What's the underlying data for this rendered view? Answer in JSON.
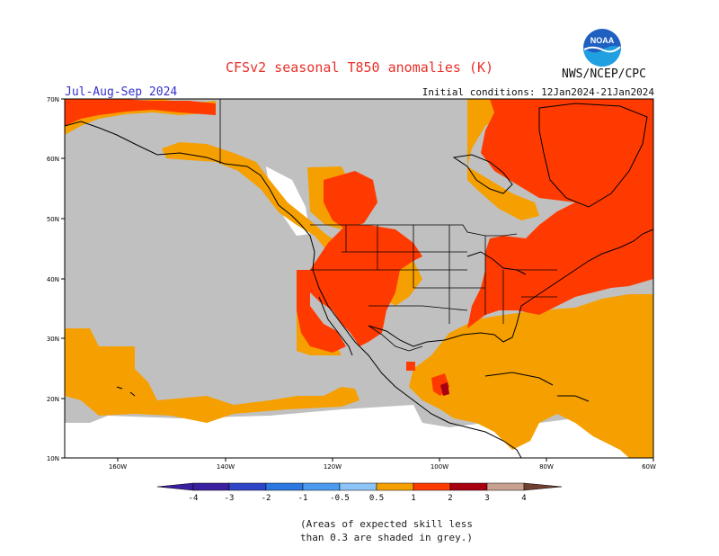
{
  "title": "CFSv2 seasonal T850 anomalies (K)",
  "agency": "NWS/NCEP/CPC",
  "period": "Jul-Aug-Sep 2024",
  "initial_conditions": "Initial conditions: 12Jan2024-21Jan2024",
  "logo_text": "NOAA",
  "lat_labels": [
    "70N",
    "60N",
    "50N",
    "40N",
    "30N",
    "20N",
    "10N"
  ],
  "lon_labels": [
    "160W",
    "140W",
    "120W",
    "100W",
    "80W",
    "60W"
  ],
  "colorbar": {
    "labels": [
      "-4",
      "-3",
      "-2",
      "-1",
      "-0.5",
      "0.5",
      "1",
      "2",
      "3",
      "4"
    ],
    "colors": [
      "#3a1fa0",
      "#2e45c8",
      "#2a78e0",
      "#4a9af0",
      "#8cc4f8",
      "#ffffff",
      "#f5a000",
      "#ff3a00",
      "#a80010",
      "#c8a090",
      "#704030"
    ]
  },
  "map_colors": {
    "grey": "#c0c0c0",
    "orange": "#f5a000",
    "red": "#ff3a00",
    "darkred": "#a80010",
    "border": "#000000"
  },
  "note_line1": "(Areas of expected skill less",
  "note_line2": "than 0.3 are shaded in grey.)"
}
